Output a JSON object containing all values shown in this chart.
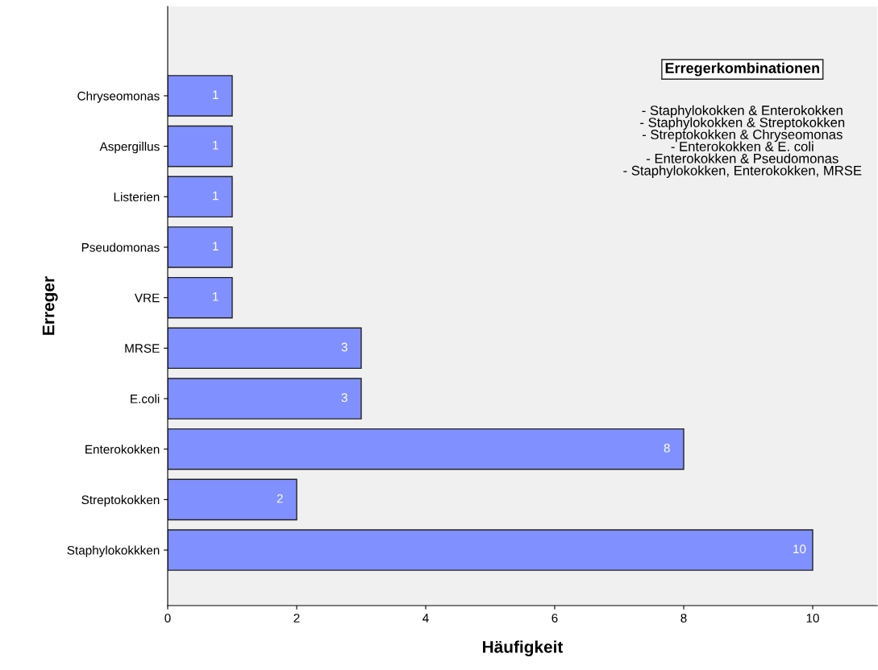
{
  "chart_data": {
    "type": "bar",
    "orientation": "horizontal",
    "xlabel": "Häufigkeit",
    "ylabel": "Erreger",
    "categories": [
      "Chryseomonas",
      "Aspergillus",
      "Listerien",
      "Pseudomonas",
      "VRE",
      "MRSE",
      "E.coli",
      "Enterokokken",
      "Streptokokken",
      "Staphylokokkken"
    ],
    "values": [
      1,
      1,
      1,
      1,
      1,
      3,
      3,
      8,
      2,
      10
    ],
    "color": "#8090ff",
    "xlim": [
      0,
      11
    ],
    "xticks": [
      0,
      2,
      4,
      6,
      8,
      10
    ],
    "grid": false,
    "data_labels": true,
    "annotations": [
      "Erregerkombinationen",
      "- Staphylokokken & Enterokokken\n- Staphylokokken & Streptokokken\n- Streptokokken & Chryseomonas\n- Enterokokken & E. coli\n- Enterokokken & Pseudomonas\n- Staphylokokken, Enterokokken, MRSE"
    ]
  }
}
